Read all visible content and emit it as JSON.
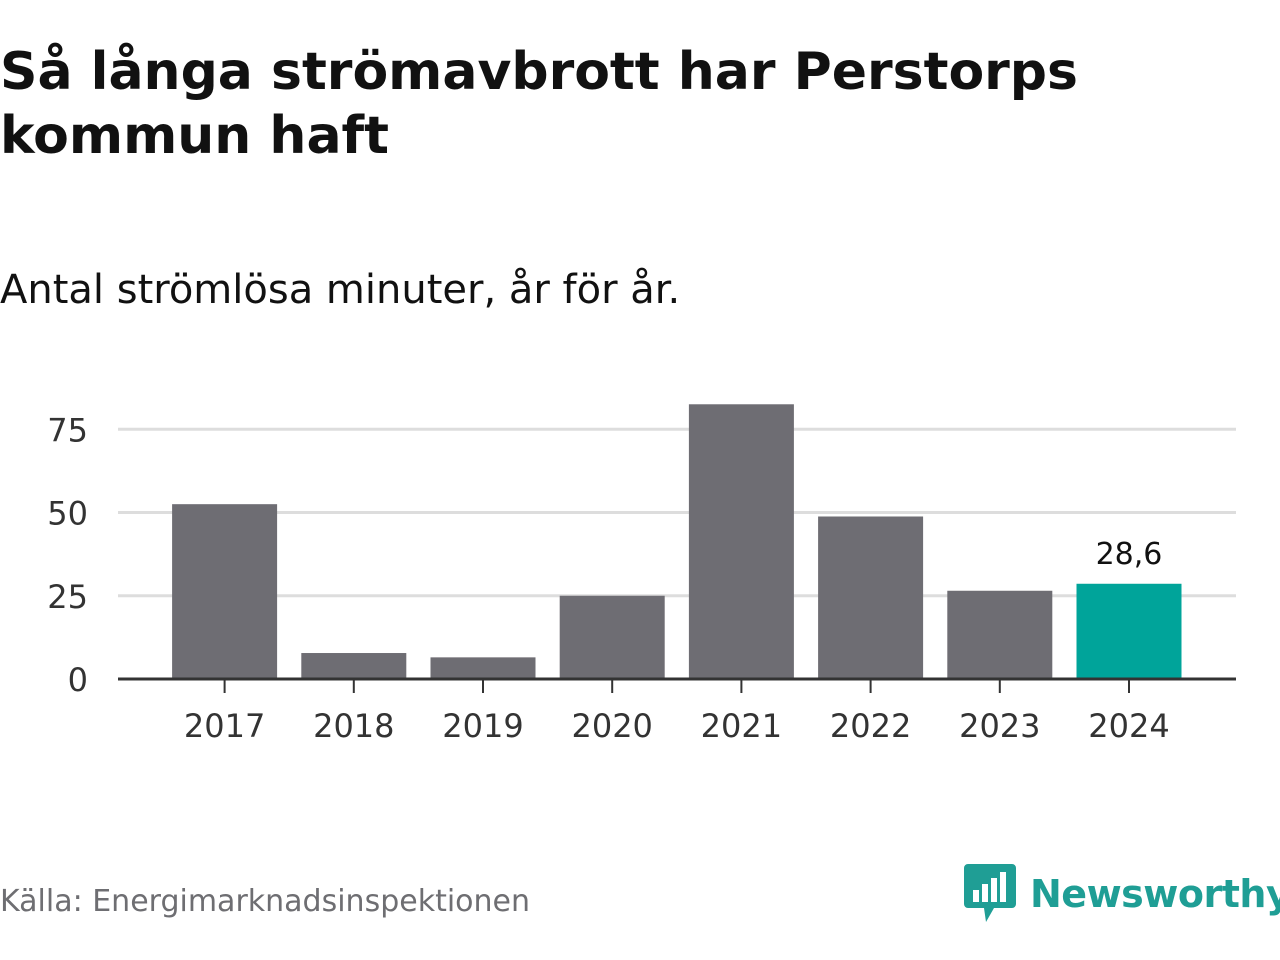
{
  "title": "Så långa strömavbrott har Perstorps kommun haft",
  "subtitle": "Antal strömlösa minuter, år för år.",
  "source": "Källa: Energimarknadsinspektionen",
  "brand": {
    "name": "Newsworthy",
    "color": "#1f9e95",
    "icon": "newsworthy-logo-icon"
  },
  "colors": {
    "bar": "#6e6d73",
    "highlight": "#00a49a",
    "grid": "#dddddd",
    "axis": "#333333",
    "tick_text": "#333333"
  },
  "chart_data": {
    "type": "bar",
    "categories": [
      "2017",
      "2018",
      "2019",
      "2020",
      "2021",
      "2022",
      "2023",
      "2024"
    ],
    "values": [
      52.5,
      7.8,
      6.5,
      25,
      82.5,
      48.8,
      26.5,
      28.6
    ],
    "highlight_index": 7,
    "data_labels": [
      {
        "index": 7,
        "text": "28,6"
      }
    ],
    "ylim": [
      0,
      85
    ],
    "yticks": [
      0,
      25,
      50,
      75
    ],
    "xlabel": "",
    "ylabel": "",
    "grid": true
  }
}
